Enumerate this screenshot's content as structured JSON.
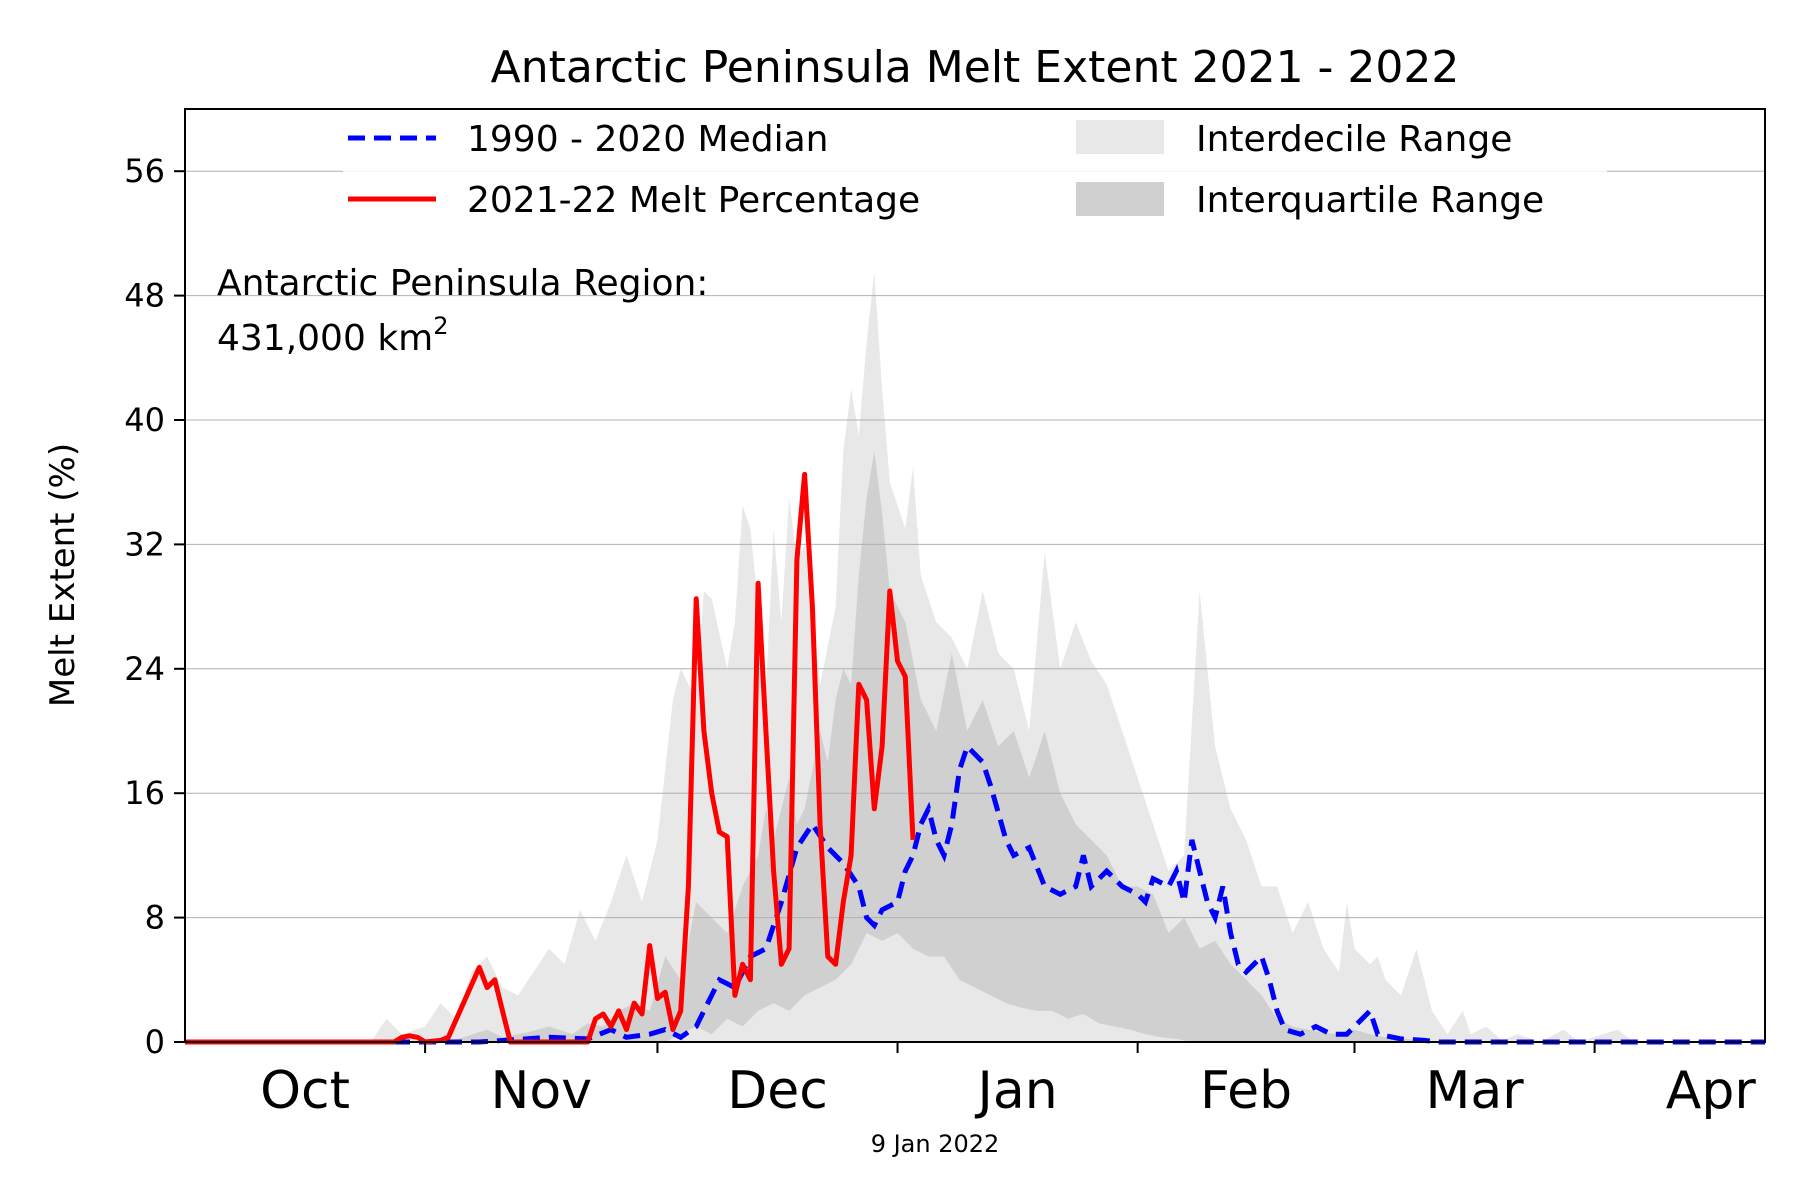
{
  "chart_data": {
    "type": "area",
    "title": "Antarctic Peninsula Melt Extent 2021 - 2022",
    "xlabel": "",
    "ylabel": "Melt Extent (%)",
    "ylim": [
      0,
      60
    ],
    "yticks": [
      "0",
      "8",
      "16",
      "24",
      "32",
      "40",
      "48",
      "56"
    ],
    "month_labels": [
      "Oct",
      "Nov",
      "Dec",
      "Jan",
      "Feb",
      "Mar",
      "Apr"
    ],
    "x_day_range": [
      0,
      204
    ],
    "date_note": "9 Jan 2022",
    "annotation": {
      "line1": "Antarctic Peninsula Region:",
      "line2": "431,000 km",
      "superscript": "2"
    },
    "legend": {
      "median": "1990 - 2020 Median",
      "current": "2021-22 Melt Percentage",
      "interdecile": "Interdecile Range",
      "interquartile": "Interquartile Range"
    },
    "colors": {
      "median": "#0000ff",
      "current": "#ff0000",
      "interdecile": "#e8e8e8",
      "interquartile": "#d0d0d0",
      "grid": "#b0b0b0"
    },
    "series": [
      {
        "name": "1990 - 2020 Median",
        "style": "dashed",
        "points": [
          [
            0,
            0
          ],
          [
            38,
            0
          ],
          [
            47,
            0.3
          ],
          [
            52,
            0.2
          ],
          [
            55,
            0.8
          ],
          [
            57,
            0.3
          ],
          [
            60,
            0.5
          ],
          [
            62,
            0.8
          ],
          [
            64,
            0.3
          ],
          [
            66,
            1
          ],
          [
            67,
            2
          ],
          [
            69,
            4
          ],
          [
            71,
            3.5
          ],
          [
            73,
            5.5
          ],
          [
            75,
            6
          ],
          [
            77,
            9
          ],
          [
            79,
            12.5
          ],
          [
            81,
            14
          ],
          [
            83,
            12.5
          ],
          [
            85,
            11.5
          ],
          [
            87,
            10
          ],
          [
            88,
            8
          ],
          [
            89,
            7.5
          ],
          [
            90,
            8.5
          ],
          [
            92,
            9
          ],
          [
            93,
            11
          ],
          [
            94,
            12
          ],
          [
            95,
            14
          ],
          [
            96,
            15
          ],
          [
            97,
            13
          ],
          [
            98,
            12
          ],
          [
            99,
            14
          ],
          [
            100,
            17.5
          ],
          [
            101,
            19
          ],
          [
            102,
            18.5
          ],
          [
            103,
            18
          ],
          [
            104,
            16.5
          ],
          [
            106,
            13
          ],
          [
            107,
            12
          ],
          [
            109,
            12.5
          ],
          [
            111,
            10
          ],
          [
            113,
            9.5
          ],
          [
            115,
            10
          ],
          [
            116,
            12
          ],
          [
            117,
            10
          ],
          [
            119,
            11
          ],
          [
            121,
            10
          ],
          [
            123,
            9.5
          ],
          [
            124,
            9
          ],
          [
            125,
            10.5
          ],
          [
            127,
            10
          ],
          [
            128,
            11
          ],
          [
            129,
            9
          ],
          [
            130,
            13
          ],
          [
            131,
            11
          ],
          [
            132,
            9
          ],
          [
            133,
            8
          ],
          [
            134,
            10
          ],
          [
            135,
            7
          ],
          [
            136,
            5
          ],
          [
            137,
            4.5
          ],
          [
            138,
            5
          ],
          [
            139,
            5.5
          ],
          [
            140,
            4
          ],
          [
            141,
            2
          ],
          [
            142,
            0.8
          ],
          [
            144,
            0.5
          ],
          [
            146,
            1
          ],
          [
            148,
            0.5
          ],
          [
            150,
            0.5
          ],
          [
            151,
            1
          ],
          [
            152,
            1.5
          ],
          [
            153,
            2
          ],
          [
            154,
            0.5
          ],
          [
            157,
            0.2
          ],
          [
            160,
            0.1
          ],
          [
            162,
            0
          ],
          [
            204,
            0
          ]
        ]
      },
      {
        "name": "2021-22 Melt Percentage",
        "style": "solid",
        "points": [
          [
            0,
            0
          ],
          [
            27,
            0
          ],
          [
            28,
            0.3
          ],
          [
            29,
            0.4
          ],
          [
            30,
            0.3
          ],
          [
            31,
            0
          ],
          [
            33,
            0.1
          ],
          [
            34,
            0.3
          ],
          [
            38,
            4.8
          ],
          [
            39,
            3.5
          ],
          [
            40,
            4
          ],
          [
            41,
            2
          ],
          [
            42,
            0
          ],
          [
            52,
            0
          ],
          [
            53,
            1.5
          ],
          [
            54,
            1.8
          ],
          [
            55,
            1
          ],
          [
            56,
            2
          ],
          [
            57,
            0.8
          ],
          [
            58,
            2.5
          ],
          [
            59,
            1.8
          ],
          [
            60,
            6.2
          ],
          [
            61,
            2.8
          ],
          [
            62,
            3.2
          ],
          [
            63,
            0.8
          ],
          [
            64,
            2
          ],
          [
            65,
            10
          ],
          [
            66,
            28.5
          ],
          [
            67,
            20
          ],
          [
            68,
            16
          ],
          [
            69,
            13.5
          ],
          [
            70,
            13.2
          ],
          [
            71,
            3
          ],
          [
            72,
            5
          ],
          [
            73,
            4
          ],
          [
            74,
            29.5
          ],
          [
            75,
            20
          ],
          [
            76,
            11
          ],
          [
            77,
            5
          ],
          [
            78,
            6
          ],
          [
            79,
            31
          ],
          [
            80,
            36.5
          ],
          [
            81,
            28
          ],
          [
            82,
            14
          ],
          [
            83,
            5.5
          ],
          [
            84,
            5
          ],
          [
            85,
            9
          ],
          [
            86,
            12
          ],
          [
            87,
            23
          ],
          [
            88,
            22
          ],
          [
            89,
            15
          ],
          [
            90,
            19
          ],
          [
            91,
            29
          ],
          [
            92,
            24.5
          ],
          [
            93,
            23.5
          ],
          [
            94,
            13
          ]
        ]
      }
    ],
    "interdecile_band": {
      "upper": [
        [
          0,
          0
        ],
        [
          24,
          0
        ],
        [
          26,
          1.5
        ],
        [
          28,
          0.5
        ],
        [
          31,
          1
        ],
        [
          33,
          2.5
        ],
        [
          35,
          1.5
        ],
        [
          37,
          4.5
        ],
        [
          39,
          5.5
        ],
        [
          41,
          3.5
        ],
        [
          43,
          3
        ],
        [
          45,
          4.5
        ],
        [
          47,
          6
        ],
        [
          49,
          5
        ],
        [
          51,
          8.5
        ],
        [
          53,
          6.5
        ],
        [
          55,
          9
        ],
        [
          57,
          12
        ],
        [
          59,
          9
        ],
        [
          61,
          13
        ],
        [
          63,
          22
        ],
        [
          64,
          24
        ],
        [
          66,
          22
        ],
        [
          67,
          29
        ],
        [
          68,
          28.5
        ],
        [
          70,
          24
        ],
        [
          71,
          27
        ],
        [
          72,
          34.5
        ],
        [
          73,
          33
        ],
        [
          74,
          28
        ],
        [
          75,
          22.5
        ],
        [
          76,
          33
        ],
        [
          77,
          27
        ],
        [
          78,
          35
        ],
        [
          79,
          31
        ],
        [
          80,
          32
        ],
        [
          81,
          28
        ],
        [
          82,
          23
        ],
        [
          84,
          28
        ],
        [
          85,
          38
        ],
        [
          86,
          42
        ],
        [
          87,
          39
        ],
        [
          88,
          45
        ],
        [
          89,
          49.5
        ],
        [
          90,
          42
        ],
        [
          91,
          36
        ],
        [
          93,
          33
        ],
        [
          94,
          37
        ],
        [
          95,
          30
        ],
        [
          97,
          27
        ],
        [
          99,
          26
        ],
        [
          101,
          24
        ],
        [
          103,
          29
        ],
        [
          105,
          25
        ],
        [
          107,
          24
        ],
        [
          109,
          20
        ],
        [
          111,
          31.5
        ],
        [
          113,
          24
        ],
        [
          115,
          27
        ],
        [
          117,
          24.5
        ],
        [
          119,
          23
        ],
        [
          121,
          20
        ],
        [
          123,
          17
        ],
        [
          125,
          14
        ],
        [
          127,
          11
        ],
        [
          129,
          12
        ],
        [
          131,
          29
        ],
        [
          133,
          19
        ],
        [
          135,
          15
        ],
        [
          137,
          13
        ],
        [
          139,
          10
        ],
        [
          141,
          10
        ],
        [
          143,
          7
        ],
        [
          145,
          9
        ],
        [
          147,
          6
        ],
        [
          149,
          4.5
        ],
        [
          150,
          9
        ],
        [
          151,
          6
        ],
        [
          153,
          5
        ],
        [
          154,
          5.5
        ],
        [
          155,
          4
        ],
        [
          157,
          3
        ],
        [
          159,
          6
        ],
        [
          161,
          2
        ],
        [
          163,
          0.5
        ],
        [
          165,
          2
        ],
        [
          166,
          0.5
        ],
        [
          168,
          1
        ],
        [
          170,
          0.1
        ],
        [
          172,
          0.5
        ],
        [
          175,
          0
        ],
        [
          178,
          0.8
        ],
        [
          180,
          0
        ],
        [
          183,
          0.5
        ],
        [
          185,
          0.8
        ],
        [
          187,
          0
        ],
        [
          204,
          0
        ]
      ],
      "lower": [
        [
          0,
          0
        ],
        [
          204,
          0
        ]
      ]
    },
    "interquartile_band": {
      "upper": [
        [
          0,
          0
        ],
        [
          34,
          0
        ],
        [
          36,
          0.3
        ],
        [
          39,
          0.8
        ],
        [
          41,
          0.3
        ],
        [
          44,
          0.6
        ],
        [
          47,
          1
        ],
        [
          50,
          0.5
        ],
        [
          52,
          1.2
        ],
        [
          54,
          1
        ],
        [
          56,
          2
        ],
        [
          58,
          2.5
        ],
        [
          60,
          2
        ],
        [
          62,
          5.5
        ],
        [
          64,
          4
        ],
        [
          66,
          9
        ],
        [
          68,
          8
        ],
        [
          70,
          7
        ],
        [
          72,
          10
        ],
        [
          74,
          12
        ],
        [
          75,
          15
        ],
        [
          76,
          13
        ],
        [
          78,
          17
        ],
        [
          79,
          14
        ],
        [
          80,
          15
        ],
        [
          82,
          20
        ],
        [
          83,
          18
        ],
        [
          84,
          22
        ],
        [
          85,
          24
        ],
        [
          86,
          23
        ],
        [
          87,
          30
        ],
        [
          88,
          35
        ],
        [
          89,
          38
        ],
        [
          90,
          34
        ],
        [
          91,
          29
        ],
        [
          93,
          27
        ],
        [
          95,
          22
        ],
        [
          97,
          20
        ],
        [
          99,
          25
        ],
        [
          101,
          20
        ],
        [
          103,
          22
        ],
        [
          105,
          19
        ],
        [
          107,
          20
        ],
        [
          109,
          17
        ],
        [
          111,
          20
        ],
        [
          113,
          16
        ],
        [
          115,
          14
        ],
        [
          117,
          13
        ],
        [
          119,
          12
        ],
        [
          121,
          10
        ],
        [
          123,
          10
        ],
        [
          125,
          9.5
        ],
        [
          127,
          7
        ],
        [
          129,
          8
        ],
        [
          131,
          6
        ],
        [
          133,
          6.5
        ],
        [
          135,
          5
        ],
        [
          137,
          4
        ],
        [
          139,
          3
        ],
        [
          141,
          1.5
        ],
        [
          143,
          1
        ],
        [
          145,
          0.8
        ],
        [
          147,
          0.6
        ],
        [
          149,
          0.5
        ],
        [
          151,
          0.8
        ],
        [
          153,
          0.5
        ],
        [
          155,
          0.3
        ],
        [
          158,
          0.2
        ],
        [
          160,
          0
        ],
        [
          204,
          0
        ]
      ],
      "lower": [
        [
          0,
          0
        ],
        [
          62,
          0
        ],
        [
          64,
          0.5
        ],
        [
          66,
          1
        ],
        [
          68,
          0.5
        ],
        [
          70,
          1.5
        ],
        [
          72,
          1
        ],
        [
          74,
          2
        ],
        [
          76,
          2.5
        ],
        [
          78,
          2
        ],
        [
          80,
          3
        ],
        [
          82,
          3.5
        ],
        [
          84,
          4
        ],
        [
          86,
          5
        ],
        [
          88,
          7
        ],
        [
          90,
          6.5
        ],
        [
          92,
          7
        ],
        [
          94,
          6
        ],
        [
          96,
          5.5
        ],
        [
          98,
          5.5
        ],
        [
          100,
          4
        ],
        [
          102,
          3.5
        ],
        [
          104,
          3
        ],
        [
          106,
          2.5
        ],
        [
          108,
          2.2
        ],
        [
          110,
          2
        ],
        [
          112,
          2
        ],
        [
          114,
          1.5
        ],
        [
          116,
          1.8
        ],
        [
          118,
          1.2
        ],
        [
          120,
          1
        ],
        [
          122,
          0.8
        ],
        [
          124,
          0.5
        ],
        [
          126,
          0.3
        ],
        [
          128,
          0.2
        ],
        [
          130,
          0
        ],
        [
          204,
          0
        ]
      ]
    }
  }
}
